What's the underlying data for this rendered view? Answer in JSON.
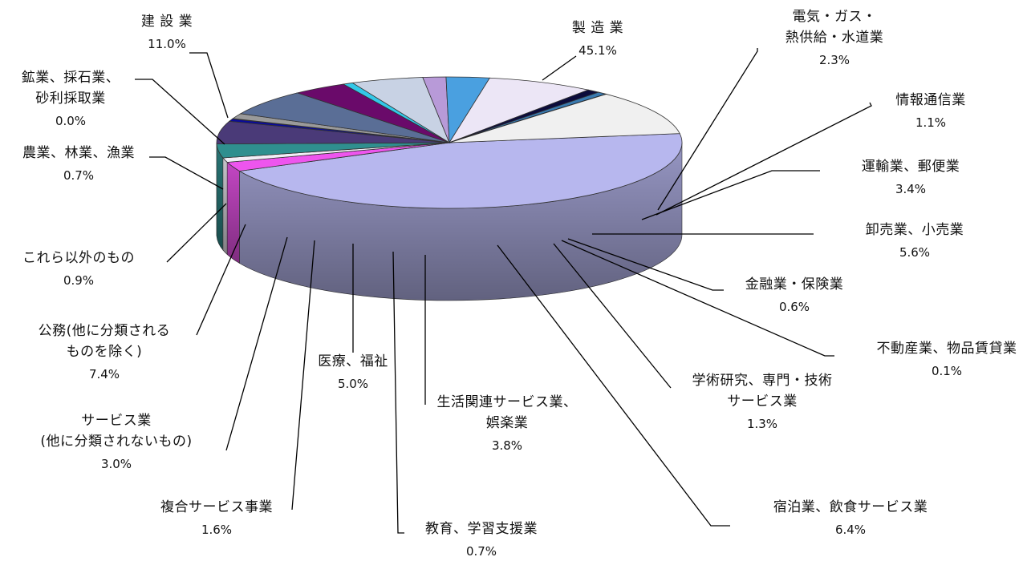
{
  "chart_data": {
    "type": "pie",
    "slices": [
      {
        "label_lines": [
          "製 造 業"
        ],
        "value": 45.1,
        "value_text": "45.1%",
        "color": "#b7b7ee"
      },
      {
        "label_lines": [
          "電気・ガス・",
          "熱供給・水道業"
        ],
        "value": 2.3,
        "value_text": "2.3%",
        "color": "#ee55ee"
      },
      {
        "label_lines": [
          "情報通信業"
        ],
        "value": 1.1,
        "value_text": "1.1%",
        "color": "#f2eef6"
      },
      {
        "label_lines": [
          "運輸業、郵便業"
        ],
        "value": 3.4,
        "value_text": "3.4%",
        "color": "#2f8f8f"
      },
      {
        "label_lines": [
          "卸売業、小売業"
        ],
        "value": 5.6,
        "value_text": "5.6%",
        "color": "#4a3a78"
      },
      {
        "label_lines": [
          "金融業・保険業"
        ],
        "value": 0.6,
        "value_text": "0.6%",
        "color": "#0a0a9a"
      },
      {
        "label_lines": [
          "不動産業、物品賃貸業"
        ],
        "value": 0.1,
        "value_text": "0.1%",
        "color": "#222222"
      },
      {
        "label_lines": [
          "学術研究、専門・技術",
          "サービス業"
        ],
        "value": 1.3,
        "value_text": "1.3%",
        "color": "#9a9a9a"
      },
      {
        "label_lines": [
          "宿泊業、飲食サービス業"
        ],
        "value": 6.4,
        "value_text": "6.4%",
        "color": "#5a6e96"
      },
      {
        "label_lines": [
          "生活関連サービス業、",
          "娯楽業"
        ],
        "value": 3.8,
        "value_text": "3.8%",
        "color": "#6a0a6a"
      },
      {
        "label_lines": [
          "教育、学習支援業"
        ],
        "value": 0.7,
        "value_text": "0.7%",
        "color": "#33c8e8"
      },
      {
        "label_lines": [
          "医療、福祉"
        ],
        "value": 5.0,
        "value_text": "5.0%",
        "color": "#c8d2e4"
      },
      {
        "label_lines": [
          "複合サービス事業"
        ],
        "value": 1.6,
        "value_text": "1.6%",
        "color": "#b89ad8"
      },
      {
        "label_lines": [
          "サービス業",
          "(他に分類されないもの)"
        ],
        "value": 3.0,
        "value_text": "3.0%",
        "color": "#4aa0e0"
      },
      {
        "label_lines": [
          "公務(他に分類される",
          "ものを除く)"
        ],
        "value": 7.4,
        "value_text": "7.4%",
        "color": "#ece6f6"
      },
      {
        "label_lines": [
          "これら以外のもの"
        ],
        "value": 0.9,
        "value_text": "0.9%",
        "color": "#0c0c3c"
      },
      {
        "label_lines": [
          "農業、林業、漁業"
        ],
        "value": 0.7,
        "value_text": "0.7%",
        "color": "#3a7ab0"
      },
      {
        "label_lines": [
          "鉱業、採石業、",
          "砂利採取業"
        ],
        "value": 0.0,
        "value_text": "0.0%",
        "color": "#000000"
      },
      {
        "label_lines": [
          "建 設 業"
        ],
        "value": 11.0,
        "value_text": "11.0%",
        "color": "#f0f0f0"
      }
    ]
  }
}
